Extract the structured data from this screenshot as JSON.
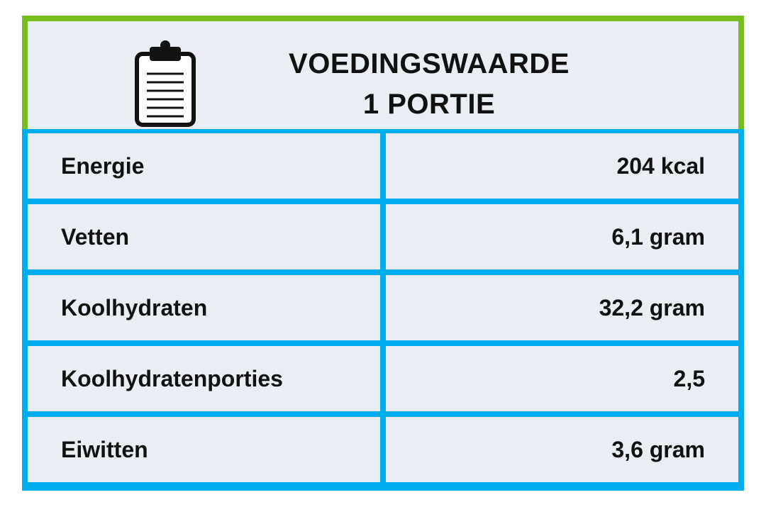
{
  "header": {
    "title_line1": "VOEDINGSWAARDE",
    "title_line2": "1 PORTIE",
    "icon": "clipboard-icon"
  },
  "colors": {
    "header_border": "#78be21",
    "table_border": "#00aeef",
    "cell_background": "#e8eef3",
    "text": "#111111"
  },
  "rows": [
    {
      "label": "Energie",
      "value": "204 kcal"
    },
    {
      "label": "Vetten",
      "value": "6,1 gram"
    },
    {
      "label": "Koolhydraten",
      "value": "32,2 gram"
    },
    {
      "label": "Koolhydratenporties",
      "value": "2,5"
    },
    {
      "label": "Eiwitten",
      "value": "3,6 gram"
    }
  ]
}
